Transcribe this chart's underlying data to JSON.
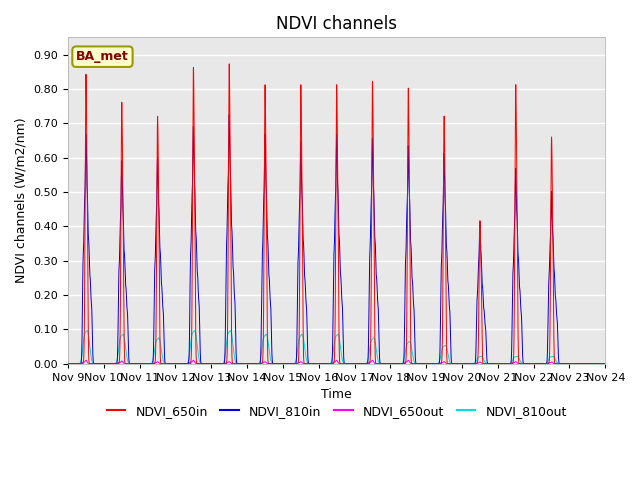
{
  "title": "NDVI channels",
  "ylabel": "NDVI channels (W/m2/nm)",
  "xlabel": "Time",
  "ylim": [
    0.0,
    0.95
  ],
  "yticks": [
    0.0,
    0.1,
    0.2,
    0.3,
    0.4,
    0.5,
    0.6,
    0.7,
    0.8,
    0.9
  ],
  "color_650in": "#ff0000",
  "color_810in": "#0000dd",
  "color_650out": "#ff00ff",
  "color_810out": "#00dddd",
  "bg_color": "#e8e8e8",
  "plot_bg_white": "#ffffff",
  "annotation_text": "BA_met",
  "annotation_bg": "#ffffcc",
  "annotation_border": "#999900",
  "legend_entries": [
    "NDVI_650in",
    "NDVI_810in",
    "NDVI_650out",
    "NDVI_810out"
  ],
  "title_fontsize": 12,
  "label_fontsize": 9,
  "tick_fontsize": 8,
  "n_days": 15,
  "start_day": 9,
  "peaks_650in": [
    0.83,
    0.75,
    0.71,
    0.85,
    0.86,
    0.8,
    0.8,
    0.8,
    0.81,
    0.79,
    0.71,
    0.41,
    0.8,
    0.65,
    0.0
  ],
  "peaks_810in": [
    0.6,
    0.53,
    0.54,
    0.62,
    0.65,
    0.6,
    0.58,
    0.6,
    0.59,
    0.57,
    0.55,
    0.37,
    0.51,
    0.45,
    0.0
  ],
  "peaks_650out": [
    0.01,
    0.008,
    0.006,
    0.01,
    0.006,
    0.006,
    0.006,
    0.01,
    0.01,
    0.01,
    0.006,
    0.005,
    0.006,
    0.005,
    0.0
  ],
  "peaks_810out": [
    0.09,
    0.08,
    0.07,
    0.09,
    0.09,
    0.08,
    0.08,
    0.08,
    0.07,
    0.06,
    0.05,
    0.02,
    0.02,
    0.02,
    0.0
  ]
}
